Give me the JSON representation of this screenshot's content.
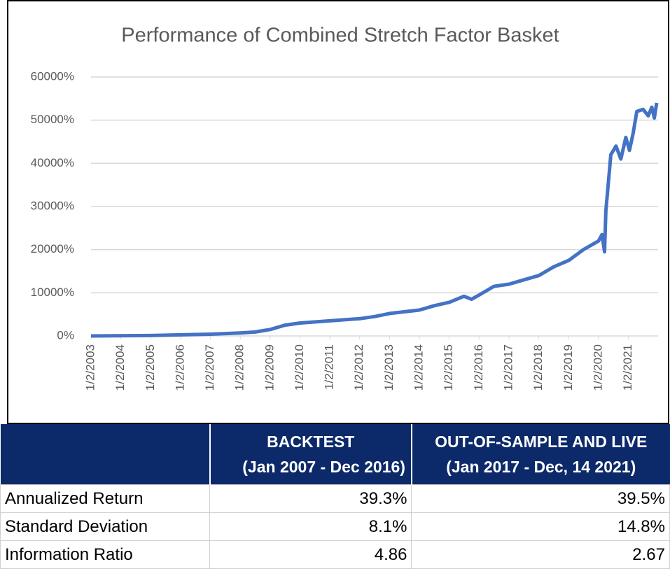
{
  "chart_data": {
    "type": "line",
    "title": "Performance of Combined Stretch Factor Basket",
    "x": [
      "2003-01-02",
      "2005-01-03",
      "2007-01-02",
      "2008-01-02",
      "2008-07-01",
      "2009-01-02",
      "2009-07-01",
      "2010-01-04",
      "2011-01-03",
      "2012-01-03",
      "2012-07-02",
      "2013-01-02",
      "2014-01-02",
      "2014-07-01",
      "2015-01-02",
      "2015-07-01",
      "2015-10-01",
      "2016-01-04",
      "2016-07-01",
      "2017-01-03",
      "2017-07-03",
      "2018-01-02",
      "2018-07-02",
      "2019-01-02",
      "2019-07-01",
      "2020-01-02",
      "2020-02-14",
      "2020-03-16",
      "2020-04-01",
      "2020-06-01",
      "2020-08-03",
      "2020-10-01",
      "2020-12-01",
      "2021-01-15",
      "2021-03-01",
      "2021-04-15",
      "2021-07-01",
      "2021-09-01",
      "2021-10-15",
      "2021-11-15",
      "2021-12-14"
    ],
    "series": [
      {
        "color": "#4472c4",
        "values": [
          0,
          100,
          400,
          700,
          900,
          1500,
          2500,
          3000,
          3500,
          4000,
          4500,
          5200,
          6000,
          7000,
          7800,
          9200,
          8500,
          9500,
          11500,
          12000,
          13000,
          14000,
          16000,
          17500,
          20000,
          22000,
          23500,
          19500,
          29000,
          42000,
          44000,
          41000,
          46000,
          43000,
          47000,
          52000,
          52500,
          51000,
          53000,
          50500,
          54000
        ]
      }
    ],
    "xlim": [
      "2003-01-02",
      "2021-12-31"
    ],
    "xticks": [
      {
        "value": "2003-01-02",
        "label": "1/2/2003"
      },
      {
        "value": "2004-01-02",
        "label": "1/2/2004"
      },
      {
        "value": "2005-01-02",
        "label": "1/2/2005"
      },
      {
        "value": "2006-01-02",
        "label": "1/2/2006"
      },
      {
        "value": "2007-01-02",
        "label": "1/2/2007"
      },
      {
        "value": "2008-01-02",
        "label": "1/2/2008"
      },
      {
        "value": "2009-01-02",
        "label": "1/2/2009"
      },
      {
        "value": "2010-01-02",
        "label": "1/2/2010"
      },
      {
        "value": "2011-01-02",
        "label": "1/2/2011"
      },
      {
        "value": "2012-01-02",
        "label": "1/2/2012"
      },
      {
        "value": "2013-01-02",
        "label": "1/2/2013"
      },
      {
        "value": "2014-01-02",
        "label": "1/2/2014"
      },
      {
        "value": "2015-01-02",
        "label": "1/2/2015"
      },
      {
        "value": "2016-01-02",
        "label": "1/2/2016"
      },
      {
        "value": "2017-01-02",
        "label": "1/2/2017"
      },
      {
        "value": "2018-01-02",
        "label": "1/2/2018"
      },
      {
        "value": "2019-01-02",
        "label": "1/2/2019"
      },
      {
        "value": "2020-01-02",
        "label": "1/2/2020"
      },
      {
        "value": "2021-01-02",
        "label": "1/2/2021"
      }
    ],
    "ylim": [
      0,
      60000
    ],
    "yticks": [
      {
        "value": 0,
        "label": "0%"
      },
      {
        "value": 10000,
        "label": "10000%"
      },
      {
        "value": 20000,
        "label": "20000%"
      },
      {
        "value": 30000,
        "label": "30000%"
      },
      {
        "value": 40000,
        "label": "40000%"
      },
      {
        "value": 50000,
        "label": "50000%"
      },
      {
        "value": 60000,
        "label": "60000%"
      }
    ],
    "grid": true
  },
  "table": {
    "columns": [
      {
        "title": "BACKTEST",
        "subtitle": "(Jan 2007 - Dec 2016)"
      },
      {
        "title": "OUT-OF-SAMPLE AND LIVE",
        "subtitle": "(Jan 2017 - Dec, 14 2021)"
      }
    ],
    "rows": [
      [
        "Annualized Return",
        "39.3%",
        "39.5%"
      ],
      [
        "Standard Deviation",
        "8.1%",
        "14.8%"
      ],
      [
        "Information Ratio",
        "4.86",
        "2.67"
      ]
    ]
  }
}
